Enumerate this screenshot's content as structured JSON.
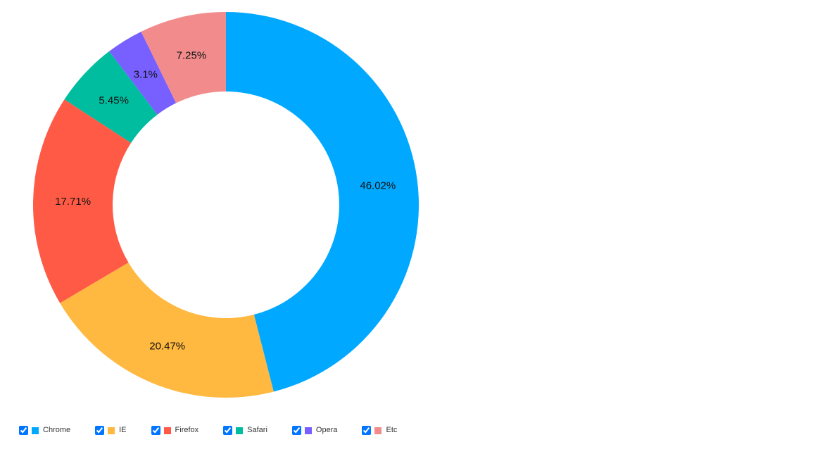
{
  "chart_data": {
    "type": "pie",
    "variant": "donut",
    "title": "",
    "categories": [
      "Chrome",
      "IE",
      "Firefox",
      "Safari",
      "Opera",
      "Etc"
    ],
    "values": [
      46.02,
      20.47,
      17.71,
      5.45,
      3.1,
      7.25
    ],
    "labels": [
      "46.02%",
      "20.47%",
      "17.71%",
      "5.45%",
      "3.1%",
      "7.25%"
    ],
    "colors": [
      "#00a9ff",
      "#ffb840",
      "#ff5a46",
      "#00bd9f",
      "#785fff",
      "#f28b8c"
    ],
    "start_angle_deg": 0,
    "direction": "clockwise",
    "legend_position": "bottom"
  },
  "legend": {
    "items": [
      {
        "label": "Chrome",
        "color": "#00a9ff",
        "checked": true
      },
      {
        "label": "IE",
        "color": "#ffb840",
        "checked": true
      },
      {
        "label": "Firefox",
        "color": "#ff5a46",
        "checked": true
      },
      {
        "label": "Safari",
        "color": "#00bd9f",
        "checked": true
      },
      {
        "label": "Opera",
        "color": "#785fff",
        "checked": true
      },
      {
        "label": "Etc",
        "color": "#f28b8c",
        "checked": true
      }
    ]
  }
}
